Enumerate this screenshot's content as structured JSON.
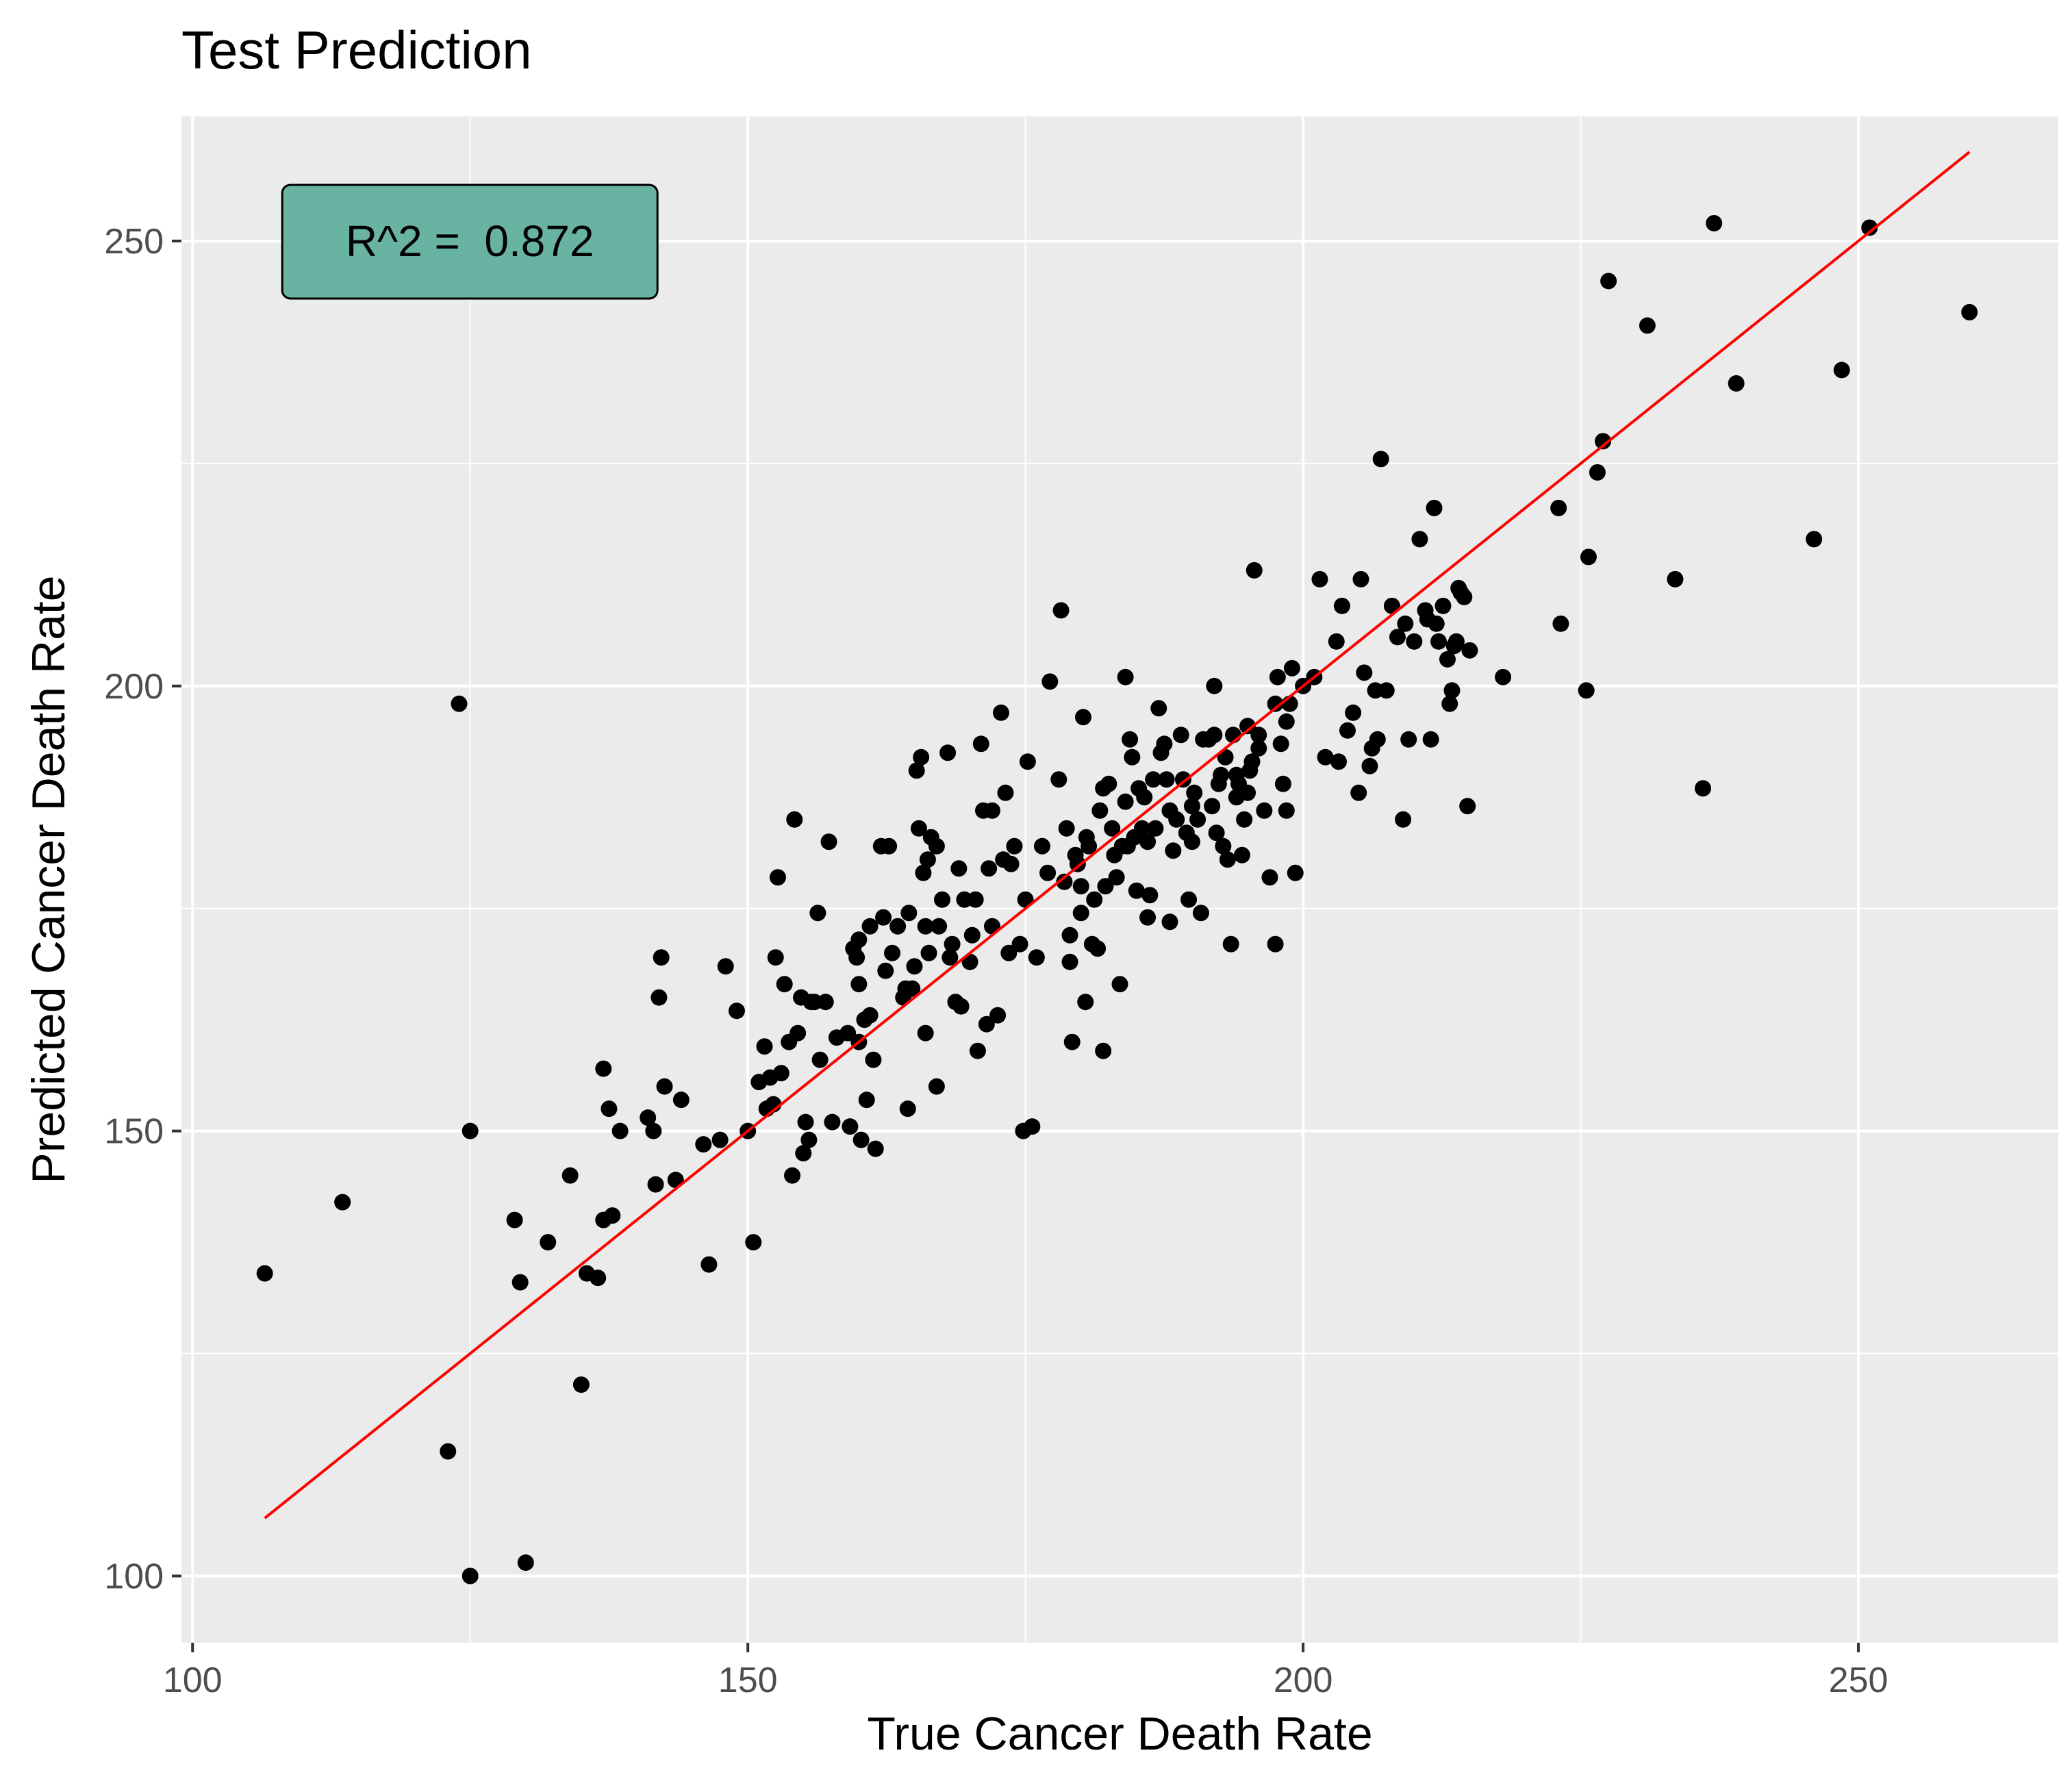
{
  "chart_data": {
    "type": "scatter",
    "title": "Test Prediction",
    "xlabel": "True Cancer Death Rate",
    "ylabel": "Predicted Cancer Death Rate",
    "xlim": [
      99,
      268
    ],
    "ylim": [
      92.5,
      264
    ],
    "x_ticks": [
      100,
      150,
      200,
      250
    ],
    "x_tick_labels": [
      "100",
      "150",
      "200",
      "250"
    ],
    "y_ticks": [
      100,
      150,
      200,
      250
    ],
    "y_tick_labels": [
      "100",
      "150",
      "200",
      "250"
    ],
    "grid": true,
    "annotation": {
      "text": "R^2 =  0.872",
      "fill": "#69b3a2",
      "anchor_data": [
        109,
        250
      ]
    },
    "fit_line": {
      "x": [
        106.5,
        260
      ],
      "y": [
        106.5,
        260
      ],
      "color": "#ff0000"
    },
    "point_color": "#000000",
    "panel_color": "#ebebeb",
    "points": [
      [
        106.5,
        134
      ],
      [
        113.5,
        142
      ],
      [
        123,
        114
      ],
      [
        124,
        198
      ],
      [
        125,
        150
      ],
      [
        125,
        100
      ],
      [
        129,
        140
      ],
      [
        129.5,
        133
      ],
      [
        130,
        101.5
      ],
      [
        132,
        137.5
      ],
      [
        134,
        145
      ],
      [
        135,
        121.5
      ],
      [
        135.5,
        134
      ],
      [
        136.5,
        133.5
      ],
      [
        137,
        157
      ],
      [
        137,
        140
      ],
      [
        137.5,
        152.5
      ],
      [
        137.8,
        140.5
      ],
      [
        138.5,
        150
      ],
      [
        141,
        151.5
      ],
      [
        141.5,
        150
      ],
      [
        141.7,
        144
      ],
      [
        142,
        165
      ],
      [
        142.2,
        169.5
      ],
      [
        142.5,
        155
      ],
      [
        143.5,
        144.5
      ],
      [
        144,
        153.5
      ],
      [
        146,
        148.5
      ],
      [
        146.5,
        135
      ],
      [
        147.5,
        149
      ],
      [
        148,
        168.5
      ],
      [
        149,
        163.5
      ],
      [
        150,
        150
      ],
      [
        150.5,
        137.5
      ],
      [
        151,
        155.5
      ],
      [
        151.5,
        159.5
      ],
      [
        151.7,
        152.5
      ],
      [
        152,
        156
      ],
      [
        152.3,
        153
      ],
      [
        152.5,
        169.5
      ],
      [
        152.7,
        178.5
      ],
      [
        153,
        156.5
      ],
      [
        153.3,
        166.5
      ],
      [
        153.7,
        160
      ],
      [
        154,
        145
      ],
      [
        154.2,
        185
      ],
      [
        154.5,
        161
      ],
      [
        154.8,
        165
      ],
      [
        155,
        147.5
      ],
      [
        155.2,
        151
      ],
      [
        155.5,
        149
      ],
      [
        155.7,
        164.5
      ],
      [
        156,
        164.5
      ],
      [
        156.3,
        174.5
      ],
      [
        156.5,
        158
      ],
      [
        157,
        164.5
      ],
      [
        157.3,
        182.5
      ],
      [
        157.6,
        151
      ],
      [
        158,
        160.5
      ],
      [
        159,
        161
      ],
      [
        159.2,
        150.5
      ],
      [
        159.5,
        170.5
      ],
      [
        159.8,
        169.5
      ],
      [
        160,
        171.5
      ],
      [
        160,
        166.5
      ],
      [
        160,
        160
      ],
      [
        160.2,
        149
      ],
      [
        160.5,
        162.5
      ],
      [
        160.7,
        153.5
      ],
      [
        161,
        163
      ],
      [
        161.3,
        158
      ],
      [
        161.5,
        148
      ],
      [
        161,
        173
      ],
      [
        162,
        182
      ],
      [
        162.2,
        174
      ],
      [
        162.4,
        168
      ],
      [
        162.7,
        182
      ],
      [
        163,
        170
      ],
      [
        163.5,
        173
      ],
      [
        164,
        165
      ],
      [
        164.2,
        166
      ],
      [
        164.4,
        152.5
      ],
      [
        164.5,
        174.5
      ],
      [
        164.8,
        166
      ],
      [
        165,
        168.5
      ],
      [
        165.2,
        190.5
      ],
      [
        165.4,
        184
      ],
      [
        165.6,
        192
      ],
      [
        165.8,
        179
      ],
      [
        166,
        173
      ],
      [
        166,
        161
      ],
      [
        166.2,
        180.5
      ],
      [
        166.3,
        170
      ],
      [
        166.5,
        183
      ],
      [
        167,
        155
      ],
      [
        167,
        182
      ],
      [
        167.2,
        173
      ],
      [
        167.5,
        176
      ],
      [
        168,
        192.5
      ],
      [
        168.2,
        169.5
      ],
      [
        168.4,
        171
      ],
      [
        168.7,
        164.5
      ],
      [
        169,
        179.5
      ],
      [
        169.2,
        164
      ],
      [
        169.5,
        176
      ],
      [
        170,
        169
      ],
      [
        170.2,
        172
      ],
      [
        170.5,
        176
      ],
      [
        170.7,
        159
      ],
      [
        171,
        193.5
      ],
      [
        171.2,
        186
      ],
      [
        171.5,
        162
      ],
      [
        171.7,
        179.5
      ],
      [
        172,
        186
      ],
      [
        172,
        173
      ],
      [
        172.5,
        163
      ],
      [
        172.8,
        197
      ],
      [
        173,
        180.5
      ],
      [
        173.2,
        188
      ],
      [
        173.5,
        170
      ],
      [
        173.7,
        180
      ],
      [
        174,
        182
      ],
      [
        174.5,
        171
      ],
      [
        174.8,
        150
      ],
      [
        175,
        176
      ],
      [
        175.2,
        191.5
      ],
      [
        175.6,
        150.5
      ],
      [
        176,
        169.5
      ],
      [
        176.5,
        182
      ],
      [
        177,
        179
      ],
      [
        177.2,
        200.5
      ],
      [
        178,
        189.5
      ],
      [
        178.2,
        208.5
      ],
      [
        178.5,
        178
      ],
      [
        178.7,
        184
      ],
      [
        179,
        172
      ],
      [
        179,
        169
      ],
      [
        179.2,
        160
      ],
      [
        179.5,
        181
      ],
      [
        179.7,
        180
      ],
      [
        180,
        177.5
      ],
      [
        180,
        174.5
      ],
      [
        180.2,
        196.5
      ],
      [
        180.4,
        164.5
      ],
      [
        180.5,
        183
      ],
      [
        180.7,
        182
      ],
      [
        181,
        171
      ],
      [
        181.2,
        176
      ],
      [
        181.5,
        170.5
      ],
      [
        181.7,
        186
      ],
      [
        182,
        188.5
      ],
      [
        182,
        159
      ],
      [
        182.2,
        177.5
      ],
      [
        182.5,
        189
      ],
      [
        182.8,
        184
      ],
      [
        183,
        181
      ],
      [
        183.2,
        178.5
      ],
      [
        183.5,
        166.5
      ],
      [
        183.7,
        182
      ],
      [
        184,
        187
      ],
      [
        184,
        201
      ],
      [
        184.2,
        182
      ],
      [
        184.4,
        194
      ],
      [
        184.6,
        192
      ],
      [
        184.8,
        183
      ],
      [
        185,
        177
      ],
      [
        185.2,
        188.5
      ],
      [
        185.5,
        184
      ],
      [
        185.7,
        187.5
      ],
      [
        186,
        182.5
      ],
      [
        186,
        174
      ],
      [
        186.2,
        176.5
      ],
      [
        186.5,
        189.5
      ],
      [
        186.7,
        184
      ],
      [
        187,
        197.5
      ],
      [
        187.2,
        192.5
      ],
      [
        187.5,
        193.5
      ],
      [
        187.7,
        189.5
      ],
      [
        188,
        173.5
      ],
      [
        188,
        186
      ],
      [
        188.3,
        181.5
      ],
      [
        188.6,
        185
      ],
      [
        189,
        194.5
      ],
      [
        189.2,
        189.5
      ],
      [
        189.5,
        183.5
      ],
      [
        189.7,
        176
      ],
      [
        190,
        182.5
      ],
      [
        190,
        186.5
      ],
      [
        190.2,
        188
      ],
      [
        190.5,
        185
      ],
      [
        190.8,
        174.5
      ],
      [
        191,
        194
      ],
      [
        191.5,
        194
      ],
      [
        191.8,
        186.5
      ],
      [
        192,
        194.5
      ],
      [
        192,
        200
      ],
      [
        192.2,
        183.5
      ],
      [
        192.4,
        189
      ],
      [
        192.6,
        190
      ],
      [
        192.8,
        182
      ],
      [
        193,
        192
      ],
      [
        193.2,
        180.5
      ],
      [
        193.5,
        171
      ],
      [
        193.7,
        194.5
      ],
      [
        194,
        187.5
      ],
      [
        194,
        190
      ],
      [
        194.2,
        189
      ],
      [
        194.5,
        181
      ],
      [
        194.7,
        185
      ],
      [
        195,
        195.5
      ],
      [
        195,
        188
      ],
      [
        195.2,
        190.5
      ],
      [
        195.4,
        191.5
      ],
      [
        195.6,
        213
      ],
      [
        196,
        193
      ],
      [
        196,
        194.5
      ],
      [
        196.5,
        186
      ],
      [
        197,
        178.5
      ],
      [
        197.5,
        198
      ],
      [
        197.5,
        171
      ],
      [
        197.7,
        201
      ],
      [
        198,
        193.5
      ],
      [
        198.2,
        189
      ],
      [
        198.5,
        196
      ],
      [
        198.5,
        186
      ],
      [
        198.8,
        198
      ],
      [
        199,
        202
      ],
      [
        199.3,
        179
      ],
      [
        200,
        200
      ],
      [
        201,
        201
      ],
      [
        201.5,
        212
      ],
      [
        202,
        192
      ],
      [
        203,
        205
      ],
      [
        203.2,
        191.5
      ],
      [
        203.5,
        209
      ],
      [
        204,
        195
      ],
      [
        204.5,
        197
      ],
      [
        205,
        188
      ],
      [
        205.2,
        212
      ],
      [
        205.5,
        201.5
      ],
      [
        206,
        191
      ],
      [
        206.2,
        193
      ],
      [
        206.5,
        199.5
      ],
      [
        206.7,
        194
      ],
      [
        207,
        225.5
      ],
      [
        207.5,
        199.5
      ],
      [
        208,
        209
      ],
      [
        208.5,
        205.5
      ],
      [
        209,
        185
      ],
      [
        209.2,
        207
      ],
      [
        209.5,
        194
      ],
      [
        210,
        205
      ],
      [
        210.5,
        216.5
      ],
      [
        211,
        208.5
      ],
      [
        211.2,
        207.5
      ],
      [
        211.5,
        194
      ],
      [
        211.8,
        220
      ],
      [
        212,
        207
      ],
      [
        212.2,
        205
      ],
      [
        212.6,
        209
      ],
      [
        213,
        203
      ],
      [
        213.2,
        198
      ],
      [
        213.4,
        199.5
      ],
      [
        213.6,
        204.5
      ],
      [
        213.8,
        205
      ],
      [
        214,
        211
      ],
      [
        214.2,
        210.5
      ],
      [
        214.5,
        210
      ],
      [
        214.8,
        186.5
      ],
      [
        215,
        204
      ],
      [
        218,
        201
      ],
      [
        223,
        220
      ],
      [
        223.2,
        207
      ],
      [
        225.5,
        199.5
      ],
      [
        225.7,
        214.5
      ],
      [
        226.5,
        224
      ],
      [
        227,
        227.5
      ],
      [
        227.5,
        245.5
      ],
      [
        231,
        240.5
      ],
      [
        233.5,
        212
      ],
      [
        236,
        188.5
      ],
      [
        237,
        252
      ],
      [
        239,
        234
      ],
      [
        246,
        216.5
      ],
      [
        248.5,
        235.5
      ],
      [
        251,
        251.5
      ],
      [
        260,
        242
      ]
    ]
  }
}
